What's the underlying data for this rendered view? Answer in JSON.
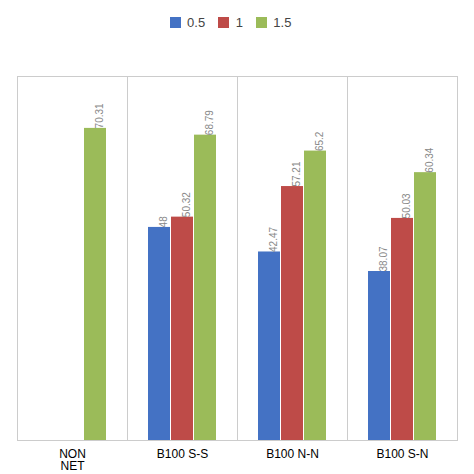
{
  "chart_data": {
    "type": "bar",
    "categories": [
      "NON\nNET",
      "B100 S-S",
      "B100 N-N",
      "B100 S-N"
    ],
    "series": [
      {
        "name": "0.5",
        "color": "#4472C4",
        "values": [
          null,
          48,
          42.47,
          38.07
        ]
      },
      {
        "name": "1",
        "color": "#BE4B48",
        "values": [
          null,
          50.32,
          57.21,
          50.03
        ]
      },
      {
        "name": "1.5",
        "color": "#9BBB59",
        "values": [
          70.31,
          68.79,
          65.2,
          60.34
        ]
      }
    ],
    "ylim": [
      0,
      82
    ],
    "grid": false,
    "legend": "top",
    "data_labels": true,
    "tick_labels": "x"
  }
}
